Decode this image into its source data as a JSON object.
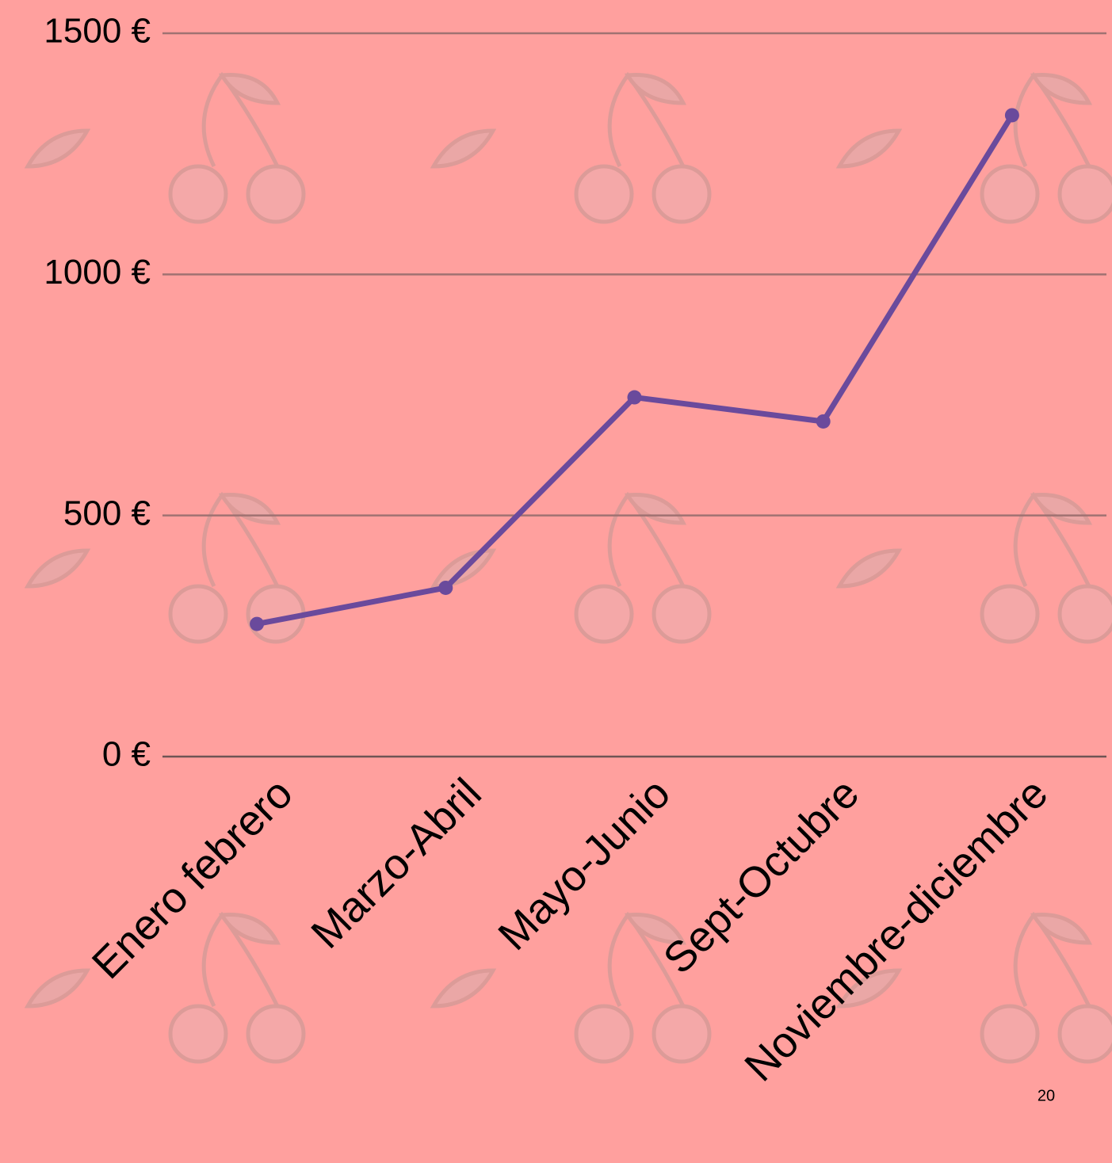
{
  "chart_data": {
    "type": "line",
    "categories": [
      "Enero febrero",
      "Marzo-Abril",
      "Mayo-Junio",
      "Sept-Octubre",
      "Noviembre-diciembre"
    ],
    "series": [
      {
        "color": "#6a4a9c",
        "values": [
          275,
          350,
          745,
          695,
          1330
        ]
      }
    ],
    "ylim": [
      0,
      1500
    ],
    "yticks": [
      {
        "value": 0,
        "label": "0 €"
      },
      {
        "value": 500,
        "label": "500 €"
      },
      {
        "value": 1000,
        "label": "1000 €"
      },
      {
        "value": 1500,
        "label": "1500 €"
      }
    ],
    "grid": true
  },
  "page_number": "20"
}
